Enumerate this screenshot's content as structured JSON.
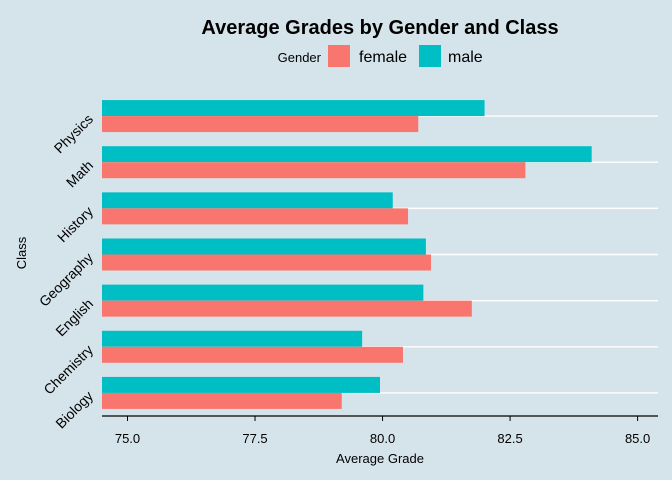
{
  "chart_data": {
    "type": "bar",
    "orientation": "horizontal",
    "title": "Average Grades by Gender and Class",
    "xlabel": "Average Grade",
    "ylabel": "Class",
    "legend_title": "Gender",
    "legend_position": "top",
    "xlim": [
      74.5,
      85.4
    ],
    "xticks": [
      "75.0",
      "77.5",
      "80.0",
      "82.5",
      "85.0"
    ],
    "xtick_values": [
      75.0,
      77.5,
      80.0,
      82.5,
      85.0
    ],
    "grid": true,
    "categories": [
      "Physics",
      "Math",
      "History",
      "Geography",
      "English",
      "Chemistry",
      "Biology"
    ],
    "series": [
      {
        "name": "female",
        "color": "#f8766d",
        "values": [
          80.7,
          82.8,
          80.5,
          80.95,
          81.75,
          80.4,
          79.2
        ]
      },
      {
        "name": "male",
        "color": "#00bfc4",
        "values": [
          82.0,
          84.1,
          80.2,
          80.85,
          80.8,
          79.6,
          79.95
        ]
      }
    ]
  }
}
